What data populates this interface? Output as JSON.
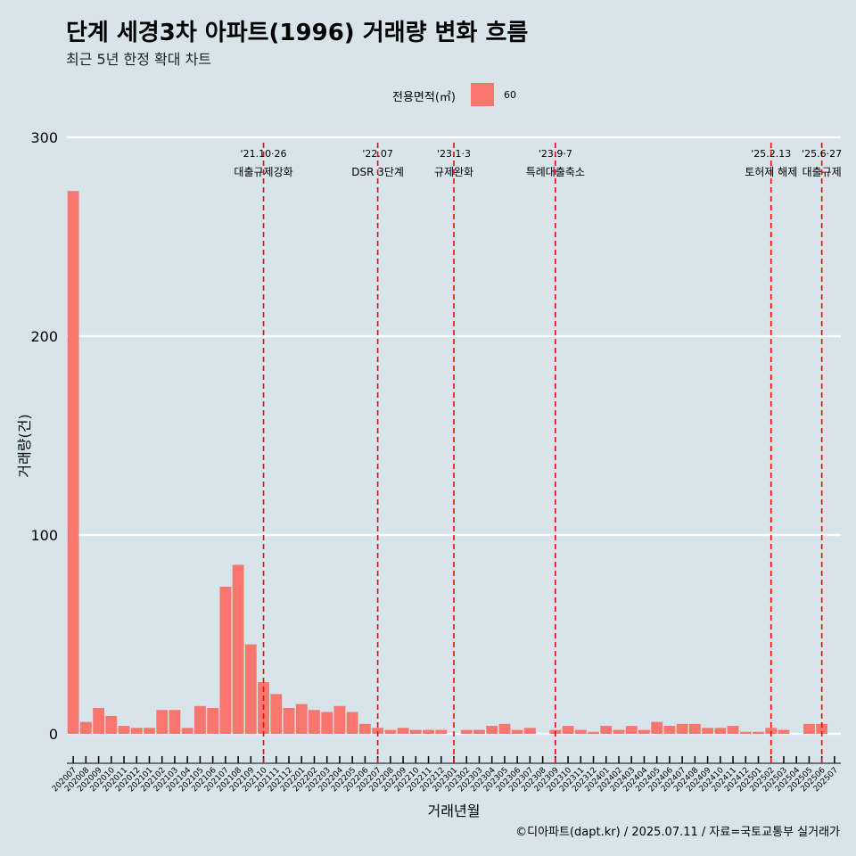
{
  "colors": {
    "bar": "#f8766d",
    "event_line": "#ff0000",
    "background": "#d7e4ea",
    "grid": "#ffffff"
  },
  "chart_data": {
    "type": "bar",
    "title": "단계 세경3차 아파트(1996) 거래량 변화 흐름",
    "subtitle": "최근 5년 한정 확대 차트",
    "xlabel": "거래년월",
    "ylabel": "거래량(건)",
    "ylim": [
      0,
      300
    ],
    "yticks": [
      0,
      100,
      200,
      300
    ],
    "legend": {
      "title": "전용면적(㎡)",
      "entries": [
        "60"
      ],
      "placement": "top"
    },
    "grid": true,
    "categories": [
      "202007",
      "202008",
      "202009",
      "202010",
      "202011",
      "202012",
      "202101",
      "202102",
      "202103",
      "202104",
      "202105",
      "202106",
      "202107",
      "202108",
      "202109",
      "202110",
      "202111",
      "202112",
      "202201",
      "202202",
      "202203",
      "202204",
      "202205",
      "202206",
      "202207",
      "202208",
      "202209",
      "202210",
      "202211",
      "202212",
      "202301",
      "202302",
      "202303",
      "202304",
      "202305",
      "202306",
      "202307",
      "202308",
      "202309",
      "202310",
      "202311",
      "202312",
      "202401",
      "202402",
      "202403",
      "202404",
      "202405",
      "202406",
      "202407",
      "202408",
      "202409",
      "202410",
      "202411",
      "202412",
      "202501",
      "202502",
      "202503",
      "202504",
      "202505",
      "202506",
      "202507"
    ],
    "series": [
      {
        "name": "60",
        "values": [
          273,
          6,
          13,
          9,
          4,
          3,
          3,
          12,
          12,
          3,
          14,
          13,
          74,
          85,
          45,
          26,
          20,
          13,
          15,
          12,
          11,
          14,
          11,
          5,
          3,
          2,
          3,
          2,
          2,
          2,
          0,
          2,
          2,
          4,
          5,
          2,
          3,
          0,
          2,
          4,
          2,
          1,
          4,
          2,
          4,
          2,
          6,
          4,
          5,
          5,
          3,
          3,
          4,
          1,
          1,
          3,
          2,
          0,
          5,
          5,
          0
        ]
      }
    ],
    "events": [
      {
        "category": "202110",
        "date": "'21.10·26",
        "label": "대출규제강화"
      },
      {
        "category": "202207",
        "date": "'22.07",
        "label": "DSR 3단계"
      },
      {
        "category": "202301",
        "date": "'23.1·3",
        "label": "규제완화"
      },
      {
        "category": "202309",
        "date": "'23.9·7",
        "label": "특례대출축소"
      },
      {
        "category": "202502",
        "date": "'25.2.13",
        "label": "토허제 해제"
      },
      {
        "category": "202506",
        "date": "'25.6·27",
        "label": "대출규제"
      }
    ]
  },
  "caption": "©디아파트(dapt.kr) / 2025.07.11 / 자료=국토교통부 실거래가"
}
